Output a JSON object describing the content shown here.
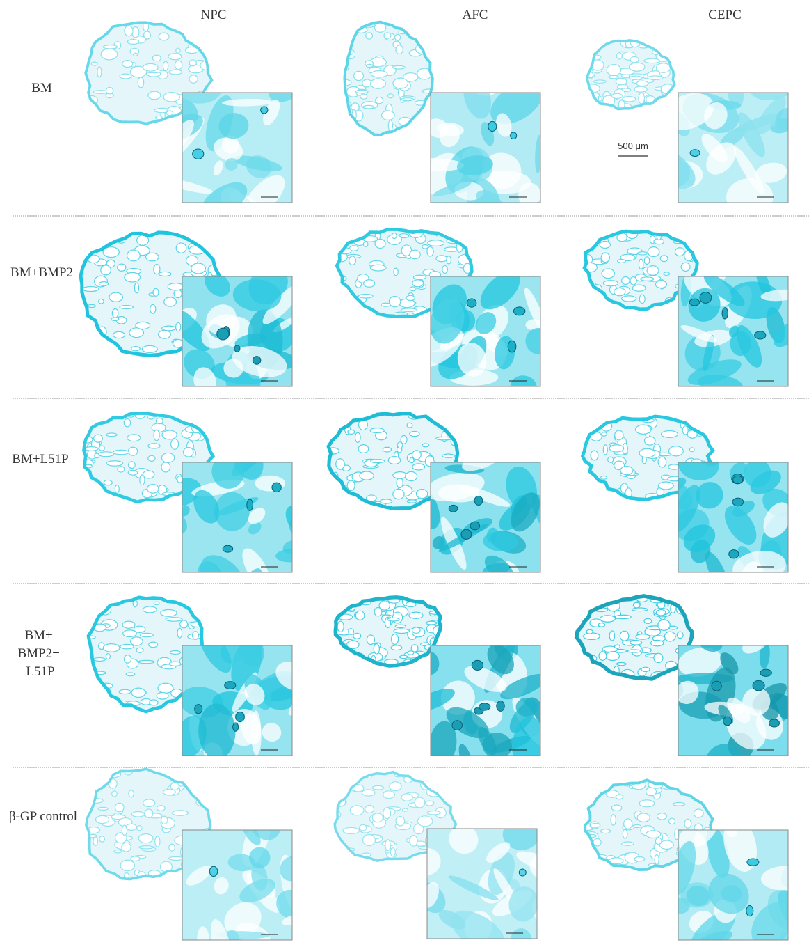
{
  "columns": [
    "NPC",
    "AFC",
    "CEPC"
  ],
  "rows": [
    [
      "BM"
    ],
    [
      "BM+BMP2"
    ],
    [
      "BM+L51P"
    ],
    [
      "BM+",
      "BMP2+",
      "L51P"
    ],
    [
      "β-GP control"
    ]
  ],
  "scale_bar": "500 μm"
}
